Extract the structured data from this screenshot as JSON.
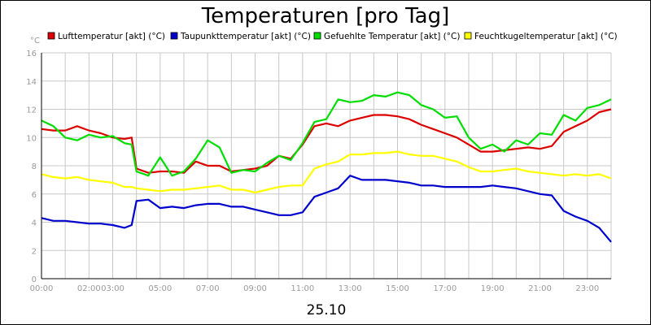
{
  "chart_data": {
    "type": "line",
    "title": "Temperaturen [pro Tag]",
    "unit": "°C",
    "xlabel": "25.10",
    "ylim": [
      0,
      16
    ],
    "yticks": [
      0,
      2,
      4,
      6,
      8,
      10,
      12,
      14,
      16
    ],
    "xlim": [
      0,
      24
    ],
    "xticks": [
      {
        "value": 0,
        "label": "00:00"
      },
      {
        "value": 2,
        "label": "02:00"
      },
      {
        "value": 3,
        "label": "03:00"
      },
      {
        "value": 5,
        "label": "05:00"
      },
      {
        "value": 7,
        "label": "07:00"
      },
      {
        "value": 9,
        "label": "09:00"
      },
      {
        "value": 11,
        "label": "11:00"
      },
      {
        "value": 13,
        "label": "13:00"
      },
      {
        "value": 15,
        "label": "15:00"
      },
      {
        "value": 17,
        "label": "17:00"
      },
      {
        "value": 19,
        "label": "19:00"
      },
      {
        "value": 21,
        "label": "21:00"
      },
      {
        "value": 23,
        "label": "23:00"
      }
    ],
    "grid": true,
    "legend_position": "top",
    "series": [
      {
        "name": "Lufttemperatur [akt] (°C)",
        "color": "#dd0000",
        "x": [
          0,
          0.5,
          1,
          1.5,
          2,
          2.5,
          3,
          3.5,
          3.8,
          4,
          4.5,
          5,
          5.5,
          6,
          6.5,
          7,
          7.5,
          8,
          8.5,
          9,
          9.5,
          10,
          10.5,
          11,
          11.5,
          12,
          12.5,
          13,
          13.5,
          14,
          14.5,
          15,
          15.5,
          16,
          16.5,
          17,
          17.5,
          18,
          18.5,
          19,
          19.5,
          20,
          20.5,
          21,
          21.5,
          22,
          22.5,
          23,
          23.5,
          24
        ],
        "values": [
          10.6,
          10.5,
          10.5,
          10.8,
          10.5,
          10.3,
          10.0,
          9.9,
          10.0,
          7.8,
          7.5,
          7.6,
          7.6,
          7.5,
          8.3,
          8.0,
          8.0,
          7.6,
          7.7,
          7.8,
          8.0,
          8.7,
          8.5,
          9.5,
          10.8,
          11.0,
          10.8,
          11.2,
          11.4,
          11.6,
          11.6,
          11.5,
          11.3,
          10.9,
          10.6,
          10.3,
          10.0,
          9.5,
          9.0,
          9.0,
          9.1,
          9.2,
          9.3,
          9.2,
          9.4,
          10.4,
          10.8,
          11.2,
          11.8,
          12.0
        ]
      },
      {
        "name": "Taupunkttemperatur [akt] (°C)",
        "color": "#0000cc",
        "x": [
          0,
          0.5,
          1,
          1.5,
          2,
          2.5,
          3,
          3.5,
          3.8,
          4,
          4.5,
          5,
          5.5,
          6,
          6.5,
          7,
          7.5,
          8,
          8.5,
          9,
          9.5,
          10,
          10.5,
          11,
          11.5,
          12,
          12.5,
          13,
          13.5,
          14,
          14.5,
          15,
          15.5,
          16,
          16.5,
          17,
          17.5,
          18,
          18.5,
          19,
          19.5,
          20,
          20.5,
          21,
          21.5,
          22,
          22.5,
          23,
          23.5,
          24
        ],
        "values": [
          4.3,
          4.1,
          4.1,
          4.0,
          3.9,
          3.9,
          3.8,
          3.6,
          3.8,
          5.5,
          5.6,
          5.0,
          5.1,
          5.0,
          5.2,
          5.3,
          5.3,
          5.1,
          5.1,
          4.9,
          4.7,
          4.5,
          4.5,
          4.7,
          5.8,
          6.1,
          6.4,
          7.3,
          7.0,
          7.0,
          7.0,
          6.9,
          6.8,
          6.6,
          6.6,
          6.5,
          6.5,
          6.5,
          6.5,
          6.6,
          6.5,
          6.4,
          6.2,
          6.0,
          5.9,
          4.8,
          4.4,
          4.1,
          3.6,
          2.6
        ]
      },
      {
        "name": "Gefuehlte Temperatur [akt] (°C)",
        "color": "#00dd00",
        "x": [
          0,
          0.5,
          1,
          1.5,
          2,
          2.5,
          3,
          3.5,
          3.8,
          4,
          4.5,
          5,
          5.5,
          6,
          6.5,
          7,
          7.5,
          8,
          8.5,
          9,
          9.5,
          10,
          10.5,
          11,
          11.5,
          12,
          12.5,
          13,
          13.5,
          14,
          14.5,
          15,
          15.5,
          16,
          16.5,
          17,
          17.5,
          18,
          18.5,
          19,
          19.5,
          20,
          20.5,
          21,
          21.5,
          22,
          22.5,
          23,
          23.5,
          24
        ],
        "values": [
          11.2,
          10.8,
          10.0,
          9.8,
          10.2,
          10.0,
          10.1,
          9.6,
          9.5,
          7.6,
          7.3,
          8.6,
          7.3,
          7.6,
          8.5,
          9.8,
          9.3,
          7.5,
          7.7,
          7.6,
          8.2,
          8.7,
          8.4,
          9.6,
          11.1,
          11.3,
          12.7,
          12.5,
          12.6,
          13.0,
          12.9,
          13.2,
          13.0,
          12.3,
          12.0,
          11.4,
          11.5,
          10.0,
          9.2,
          9.5,
          9.0,
          9.8,
          9.5,
          10.3,
          10.2,
          11.6,
          11.2,
          12.1,
          12.3,
          12.7
        ]
      },
      {
        "name": "Feuchtkugeltemperatur [akt] (°C)",
        "color": "#ffff00",
        "x": [
          0,
          0.5,
          1,
          1.5,
          2,
          2.5,
          3,
          3.5,
          3.8,
          4,
          4.5,
          5,
          5.5,
          6,
          6.5,
          7,
          7.5,
          8,
          8.5,
          9,
          9.5,
          10,
          10.5,
          11,
          11.5,
          12,
          12.5,
          13,
          13.5,
          14,
          14.5,
          15,
          15.5,
          16,
          16.5,
          17,
          17.5,
          18,
          18.5,
          19,
          19.5,
          20,
          20.5,
          21,
          21.5,
          22,
          22.5,
          23,
          23.5,
          24
        ],
        "values": [
          7.4,
          7.2,
          7.1,
          7.2,
          7.0,
          6.9,
          6.8,
          6.5,
          6.5,
          6.4,
          6.3,
          6.2,
          6.3,
          6.3,
          6.4,
          6.5,
          6.6,
          6.3,
          6.3,
          6.1,
          6.3,
          6.5,
          6.6,
          6.6,
          7.8,
          8.1,
          8.3,
          8.8,
          8.8,
          8.9,
          8.9,
          9.0,
          8.8,
          8.7,
          8.7,
          8.5,
          8.3,
          7.9,
          7.6,
          7.6,
          7.7,
          7.8,
          7.6,
          7.5,
          7.4,
          7.3,
          7.4,
          7.3,
          7.4,
          7.1
        ]
      }
    ]
  }
}
